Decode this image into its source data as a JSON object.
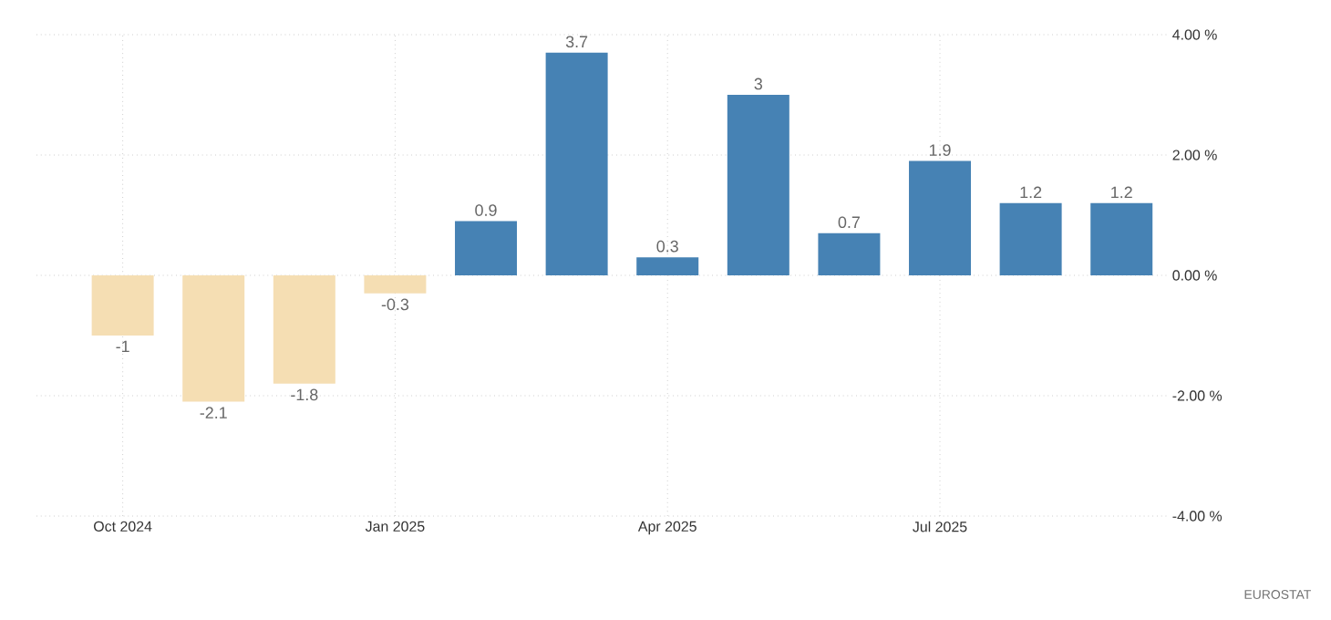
{
  "chart_data": {
    "type": "bar",
    "categories": [
      "Oct 2024",
      null,
      null,
      "Jan 2025",
      null,
      null,
      "Apr 2025",
      null,
      null,
      "Jul 2025",
      null,
      null
    ],
    "values": [
      -1,
      -2.1,
      -1.8,
      -0.3,
      0.9,
      3.7,
      0.3,
      3,
      0.7,
      1.9,
      1.2,
      1.2
    ],
    "colors": [
      "#f5deb3",
      "#f5deb3",
      "#f5deb3",
      "#f5deb3",
      "#4682b4",
      "#4682b4",
      "#4682b4",
      "#4682b4",
      "#4682b4",
      "#4682b4",
      "#4682b4",
      "#4682b4"
    ],
    "ylim": [
      -4,
      4
    ],
    "yticks": [
      {
        "value": -4,
        "label": "-4.00 %"
      },
      {
        "value": -2,
        "label": "-2.00 %"
      },
      {
        "value": 0,
        "label": "0.00 %"
      },
      {
        "value": 2,
        "label": "2.00 %"
      },
      {
        "value": 4,
        "label": "4.00 %"
      }
    ],
    "grid": true,
    "data_labels": true,
    "annotations": [
      "EUROSTAT"
    ]
  }
}
